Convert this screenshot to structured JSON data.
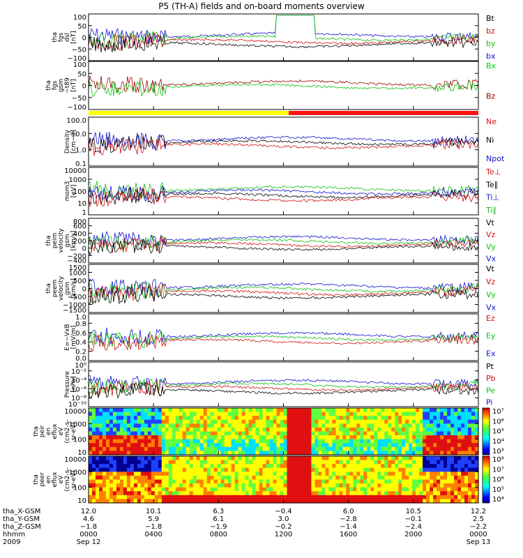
{
  "chart_data": {
    "type": "line",
    "title": "P5 (TH-A) fields and on-board moments overview",
    "panels": [
      {
        "id": "fgs_dsl",
        "ylabel": [
          "tha",
          "fgs",
          "dsl",
          "[nT]"
        ],
        "yticks": [
          "100",
          "50",
          "0",
          "−50",
          "−100"
        ],
        "legend": [
          {
            "name": "Bt",
            "color": "#000000"
          },
          {
            "name": "bz",
            "color": "#d01010"
          },
          {
            "name": "by",
            "color": "#10c010"
          },
          {
            "name": "bx",
            "color": "#1010d0"
          }
        ]
      },
      {
        "id": "fgs_gsm",
        "ylabel": [
          "tha",
          "fgs",
          "gsm",
          "−t89",
          "[nT]"
        ],
        "yticks": [
          "100",
          "50",
          "0",
          "−50",
          "−100"
        ],
        "legend": [
          {
            "name": "Bx",
            "color": "#10c010"
          },
          {
            "name": "Bz",
            "color": "#a00000"
          }
        ]
      },
      {
        "id": "density",
        "ylabel": [
          "Density",
          "[cm−3]"
        ],
        "yticks": [
          "100.0",
          "10.0",
          "1.0",
          "0.1"
        ],
        "legend": [
          {
            "name": "Ne",
            "color": "#d01010"
          },
          {
            "name": "Ni",
            "color": "#000000"
          },
          {
            "name": "Npot",
            "color": "#1010d0"
          }
        ]
      },
      {
        "id": "temperature",
        "ylabel": [
          "mom3",
          "[eV]"
        ],
        "yticks": [
          "10000",
          "1000",
          "100",
          "10",
          "1"
        ],
        "legend": [
          {
            "name": "Te⊥",
            "color": "#d01010"
          },
          {
            "name": "Te∥",
            "color": "#000000"
          },
          {
            "name": "Ti⊥",
            "color": "#1010d0"
          },
          {
            "name": "Ti∥",
            "color": "#10c010"
          }
        ]
      },
      {
        "id": "peim_velocity",
        "ylabel": [
          "tha",
          "peim",
          "velocity",
          "gsm",
          "[km/s]"
        ],
        "yticks": [
          "800",
          "600",
          "400",
          "200",
          "0",
          "−200",
          "−400"
        ],
        "legend": [
          {
            "name": "Vt",
            "color": "#000000"
          },
          {
            "name": "Vz",
            "color": "#d01010"
          },
          {
            "name": "Vy",
            "color": "#10c010"
          },
          {
            "name": "Vx",
            "color": "#1010d0"
          }
        ]
      },
      {
        "id": "peem_velocity",
        "ylabel": [
          "tha",
          "peem",
          "velocity",
          "gsm",
          "[km/s]"
        ],
        "yticks": [
          "1500",
          "1000",
          "500",
          "0",
          "−500",
          "−1000",
          "−1500"
        ],
        "legend": [
          {
            "name": "Vt",
            "color": "#000000"
          },
          {
            "name": "Vz",
            "color": "#d01010"
          },
          {
            "name": "Vy",
            "color": "#10c010"
          },
          {
            "name": "Vx",
            "color": "#1010d0"
          }
        ]
      },
      {
        "id": "efield",
        "ylabel": [
          "E=−VxB",
          "[mV/m]"
        ],
        "yticks": [
          "1.0",
          "0.8",
          "0.6",
          "0.4",
          "0.2",
          "0.0"
        ],
        "legend": [
          {
            "name": "Ez",
            "color": "#d01010"
          },
          {
            "name": "Ey",
            "color": "#10c010"
          },
          {
            "name": "Ex",
            "color": "#1010d0"
          }
        ]
      },
      {
        "id": "pressure",
        "ylabel": [
          "Pressure",
          "[nPa]"
        ],
        "yticks": [
          "10⁰",
          "10⁻²",
          "10⁻⁴",
          "10⁻⁶",
          "10⁻⁸",
          "10⁻¹⁰"
        ],
        "legend": [
          {
            "name": "Pt",
            "color": "#000000"
          },
          {
            "name": "Pb",
            "color": "#d01010"
          },
          {
            "name": "Pe",
            "color": "#10c010"
          },
          {
            "name": "Pi",
            "color": "#1010d0"
          }
        ]
      },
      {
        "id": "peir_eflux",
        "type": "heatmap",
        "ylabel": [
          "tha",
          "peir",
          "en",
          "eflux",
          "eV",
          "(cm2-s-",
          "sr-eV)"
        ],
        "yticks": [
          "10000",
          "1000",
          "100",
          "10"
        ],
        "colorbar": [
          "10⁷",
          "10⁶",
          "10⁵",
          "10⁴",
          "10³"
        ]
      },
      {
        "id": "peer_eflux",
        "type": "heatmap",
        "ylabel": [
          "tha",
          "peer",
          "en",
          "eflux",
          "eV",
          "(cm2-s-",
          "sr-eV)"
        ],
        "yticks": [
          "10000",
          "1000",
          "100",
          "10"
        ],
        "colorbar": [
          "10⁸",
          "10⁷",
          "10⁶",
          "10⁵",
          "10⁴"
        ]
      }
    ],
    "xaxis": {
      "rows": [
        {
          "label": "tha_X-GSM",
          "values": [
            "12.0",
            "10.1",
            "6.3",
            "−0.4",
            "6.0",
            "10.5",
            "12.2"
          ]
        },
        {
          "label": "tha_Y-GSM",
          "values": [
            "4.6",
            "5.9",
            "6.1",
            "3.0",
            "−2.8",
            "−0.1",
            "2.5"
          ]
        },
        {
          "label": "tha_Z-GSM",
          "values": [
            "−1.8",
            "−1.8",
            "−1.9",
            "−0.2",
            "−1.4",
            "−2.4",
            "−2.2"
          ]
        },
        {
          "label": "hhmm",
          "values": [
            "0000",
            "0400",
            "0800",
            "1200",
            "1600",
            "2000",
            "0000"
          ]
        },
        {
          "label": "2009",
          "values": [
            "Sep 12",
            "",
            "",
            "",
            "",
            "",
            "Sep 13"
          ]
        }
      ]
    }
  }
}
